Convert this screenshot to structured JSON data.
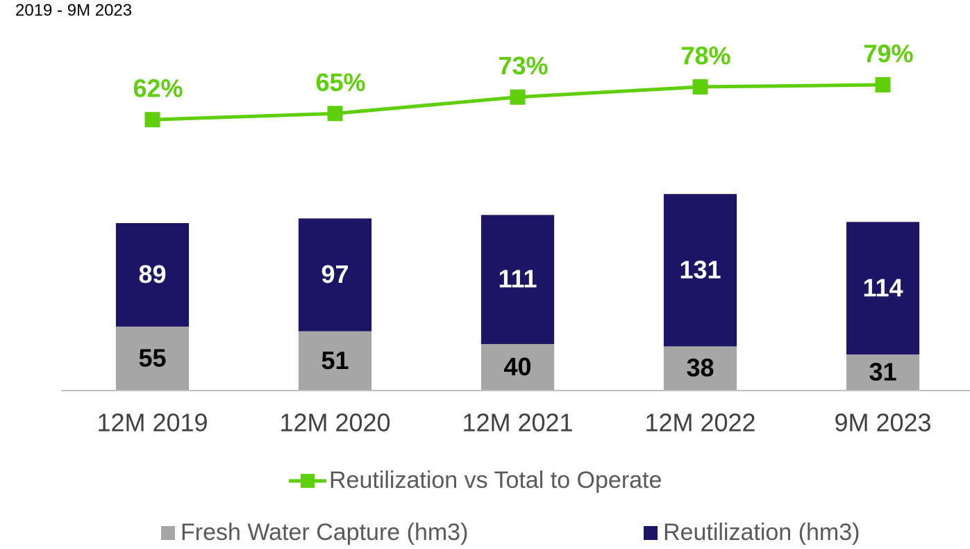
{
  "chart_data": {
    "type": "bar_line",
    "title": "2019 - 9M 2023",
    "categories": [
      "12M 2019",
      "12M 2020",
      "12M 2021",
      "12M 2022",
      "9M 2023"
    ],
    "series": [
      {
        "name": "Fresh Water Capture (hm3)",
        "color": "#a6a6a6",
        "values": [
          55,
          51,
          40,
          38,
          31
        ]
      },
      {
        "name": "Reutilization (hm3)",
        "color": "#1c1464",
        "values": [
          89,
          97,
          111,
          131,
          114
        ]
      },
      {
        "name": "Reutilization vs Total to Operate",
        "color": "#5ecf0a",
        "axis": "y2",
        "values": [
          62,
          65,
          73,
          78,
          79
        ],
        "value_labels": [
          "62%",
          "65%",
          "73%",
          "78%",
          "79%"
        ]
      }
    ],
    "ylim": [
      0,
      300
    ],
    "y2lim": [
      -70,
      100
    ]
  }
}
